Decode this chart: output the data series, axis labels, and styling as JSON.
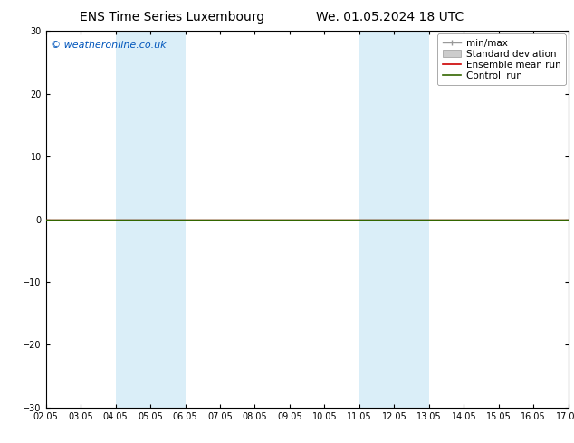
{
  "title_left": "ENS Time Series Luxembourg",
  "title_right": "We. 01.05.2024 18 UTC",
  "watermark": "© weatheronline.co.uk",
  "watermark_color": "#0055bb",
  "ylim": [
    -30,
    30
  ],
  "yticks": [
    -30,
    -20,
    -10,
    0,
    10,
    20,
    30
  ],
  "x_start": 2.05,
  "x_end": 17.05,
  "xtick_labels": [
    "02.05",
    "03.05",
    "04.05",
    "05.05",
    "06.05",
    "07.05",
    "08.05",
    "09.05",
    "10.05",
    "11.05",
    "12.05",
    "13.05",
    "14.05",
    "15.05",
    "16.05",
    "17.05"
  ],
  "xtick_positions": [
    2.05,
    3.05,
    4.05,
    5.05,
    6.05,
    7.05,
    8.05,
    9.05,
    10.05,
    11.05,
    12.05,
    13.05,
    14.05,
    15.05,
    16.05,
    17.05
  ],
  "shaded_bands": [
    {
      "x_start": 4.05,
      "x_end": 6.05
    },
    {
      "x_start": 11.05,
      "x_end": 13.05
    }
  ],
  "shade_color": "#daeef8",
  "control_run_color": "#336600",
  "ensemble_mean_color": "#cc0000",
  "background_color": "#ffffff",
  "title_fontsize": 10,
  "axis_fontsize": 7,
  "watermark_fontsize": 8,
  "legend_fontsize": 7.5
}
